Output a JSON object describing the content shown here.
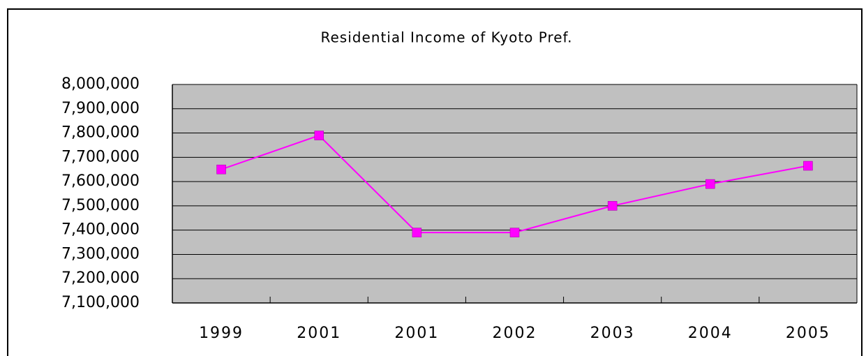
{
  "chart_data": {
    "type": "line",
    "title": "Residential Income of Kyoto Pref.",
    "categories": [
      "1999",
      "2001",
      "2001",
      "2002",
      "2003",
      "2004",
      "2005"
    ],
    "series": [
      {
        "name": "Residential Income",
        "color": "#ff00ff",
        "values": [
          7650000,
          7790000,
          7390000,
          7390000,
          7500000,
          7590000,
          7665000
        ]
      }
    ],
    "ylim": [
      7100000,
      8000000
    ],
    "yticks": [
      {
        "value": 7100000,
        "label": "7,100,000"
      },
      {
        "value": 7200000,
        "label": "7,200,000"
      },
      {
        "value": 7300000,
        "label": "7,300,000"
      },
      {
        "value": 7400000,
        "label": "7,400,000"
      },
      {
        "value": 7500000,
        "label": "7,500,000"
      },
      {
        "value": 7600000,
        "label": "7,600,000"
      },
      {
        "value": 7700000,
        "label": "7,700,000"
      },
      {
        "value": 7800000,
        "label": "7,800,000"
      },
      {
        "value": 7900000,
        "label": "7,900,000"
      },
      {
        "value": 8000000,
        "label": "8,000,000"
      }
    ],
    "grid": true,
    "plot_background": "#c0c0c0"
  }
}
